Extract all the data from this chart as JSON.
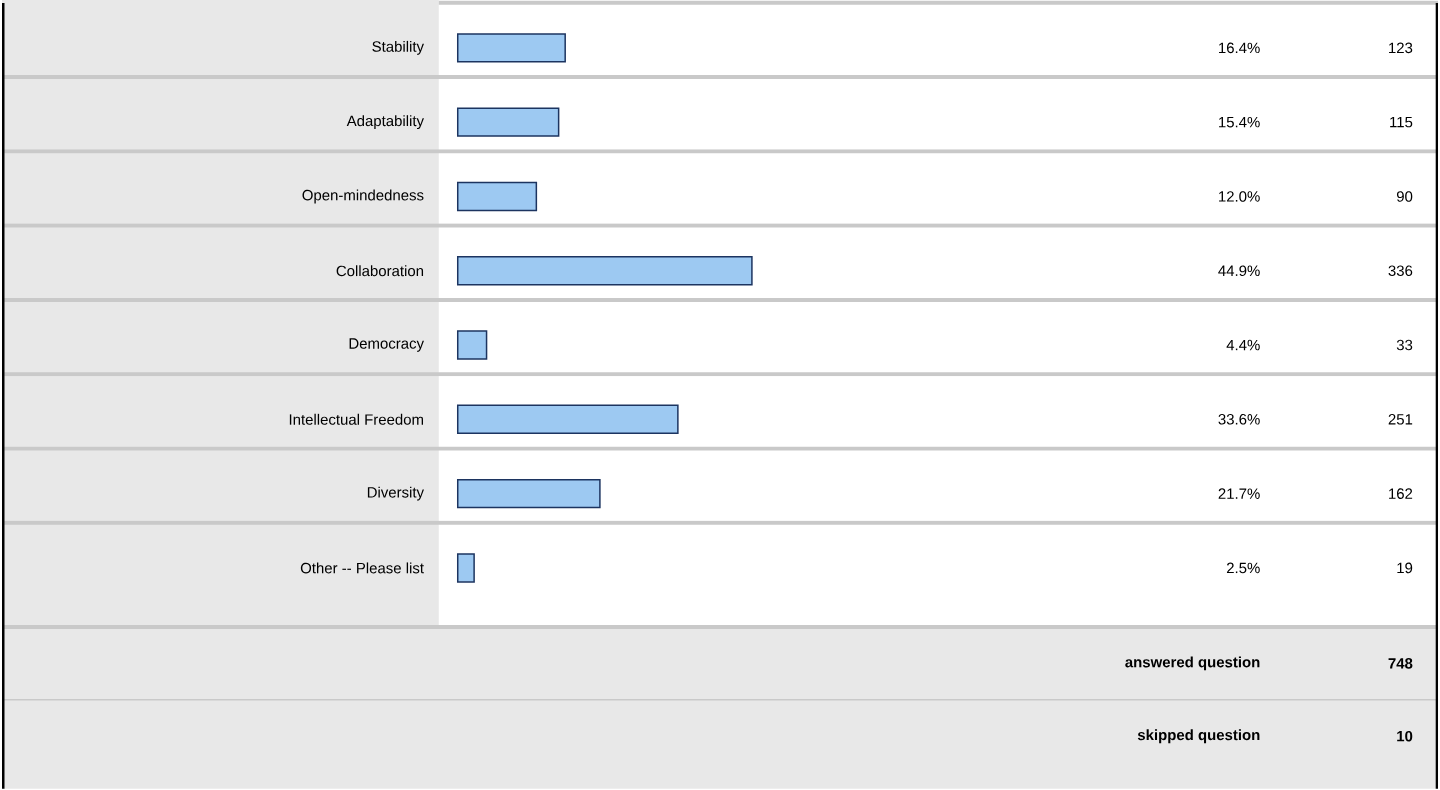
{
  "chart_data": {
    "type": "bar",
    "orientation": "horizontal",
    "categories": [
      "Stability",
      "Adaptability",
      "Open-mindedness",
      "Collaboration",
      "Democracy",
      "Intellectual Freedom",
      "Diversity",
      "Other -- Please list"
    ],
    "values": [
      16.4,
      15.4,
      12.0,
      44.9,
      4.4,
      33.6,
      21.7,
      2.5
    ],
    "value_labels": [
      "16.4%",
      "15.4%",
      "12.0%",
      "44.9%",
      "4.4%",
      "33.6%",
      "21.7%",
      "2.5%"
    ],
    "color": "#9dc9f2",
    "tick_labels": "y",
    "annotations": [
      "123",
      "115",
      "90",
      "336",
      "33",
      "251",
      "162",
      "19",
      "answered question",
      "748",
      "skipped question",
      "10"
    ]
  }
}
